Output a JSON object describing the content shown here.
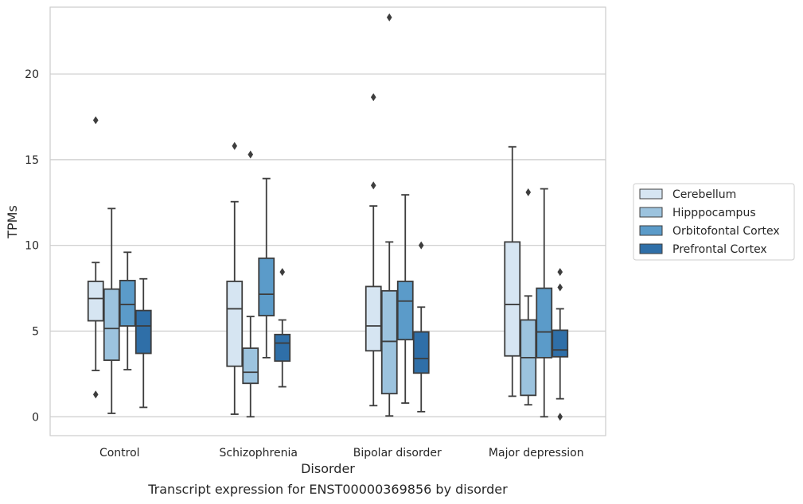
{
  "caption": "Transcript expression for ENST00000369856 by disorder",
  "chart_data": {
    "type": "box",
    "xlabel": "Disorder",
    "ylabel": "TPMs",
    "ylim": [
      -1.1,
      23.9
    ],
    "yticks": [
      0,
      5,
      10,
      15,
      20
    ],
    "grid": "horizontal",
    "legend_position": "right",
    "categories": [
      "Control",
      "Schizophrenia",
      "Bipolar disorder",
      "Major depression"
    ],
    "series": [
      {
        "name": "Cerebellum",
        "color": "#d6e5f2",
        "boxes": [
          {
            "whisker_low": 2.7,
            "q1": 5.6,
            "median": 6.9,
            "q3": 7.9,
            "whisker_high": 9.0,
            "outliers": [
              17.3,
              1.3
            ]
          },
          {
            "whisker_low": 0.15,
            "q1": 2.95,
            "median": 6.3,
            "q3": 7.9,
            "whisker_high": 12.55,
            "outliers": [
              15.8
            ]
          },
          {
            "whisker_low": 0.65,
            "q1": 3.85,
            "median": 5.3,
            "q3": 7.6,
            "whisker_high": 12.3,
            "outliers": [
              18.65,
              13.5
            ]
          },
          {
            "whisker_low": 1.2,
            "q1": 3.55,
            "median": 6.55,
            "q3": 10.2,
            "whisker_high": 15.75,
            "outliers": []
          }
        ]
      },
      {
        "name": "Hipppocampus",
        "color": "#9cc3de",
        "boxes": [
          {
            "whisker_low": 0.2,
            "q1": 3.3,
            "median": 5.15,
            "q3": 7.45,
            "whisker_high": 12.15,
            "outliers": []
          },
          {
            "whisker_low": 0.0,
            "q1": 1.95,
            "median": 2.6,
            "q3": 4.0,
            "whisker_high": 5.85,
            "outliers": [
              15.3
            ]
          },
          {
            "whisker_low": 0.05,
            "q1": 1.35,
            "median": 4.4,
            "q3": 7.35,
            "whisker_high": 10.2,
            "outliers": [
              23.3
            ]
          },
          {
            "whisker_low": 0.7,
            "q1": 1.25,
            "median": 3.45,
            "q3": 5.65,
            "whisker_high": 7.05,
            "outliers": [
              13.1
            ]
          }
        ]
      },
      {
        "name": "Orbitofontal Cortex",
        "color": "#5b9bc9",
        "boxes": [
          {
            "whisker_low": 2.75,
            "q1": 5.3,
            "median": 6.55,
            "q3": 7.95,
            "whisker_high": 9.6,
            "outliers": []
          },
          {
            "whisker_low": 3.45,
            "q1": 5.9,
            "median": 7.15,
            "q3": 9.25,
            "whisker_high": 13.9,
            "outliers": []
          },
          {
            "whisker_low": 0.8,
            "q1": 4.5,
            "median": 6.75,
            "q3": 7.9,
            "whisker_high": 12.95,
            "outliers": []
          },
          {
            "whisker_low": 0.0,
            "q1": 3.45,
            "median": 4.95,
            "q3": 7.5,
            "whisker_high": 13.3,
            "outliers": []
          }
        ]
      },
      {
        "name": "Prefrontal Cortex",
        "color": "#2f6fa8",
        "boxes": [
          {
            "whisker_low": 0.55,
            "q1": 3.7,
            "median": 5.3,
            "q3": 6.2,
            "whisker_high": 8.05,
            "outliers": []
          },
          {
            "whisker_low": 1.75,
            "q1": 3.25,
            "median": 4.3,
            "q3": 4.8,
            "whisker_high": 5.65,
            "outliers": [
              8.45
            ]
          },
          {
            "whisker_low": 0.3,
            "q1": 2.55,
            "median": 3.4,
            "q3": 4.95,
            "whisker_high": 6.4,
            "outliers": [
              10.0
            ]
          },
          {
            "whisker_low": 1.05,
            "q1": 3.5,
            "median": 3.9,
            "q3": 5.05,
            "whisker_high": 6.3,
            "outliers": [
              8.45,
              7.55,
              0.0
            ]
          }
        ]
      }
    ]
  }
}
